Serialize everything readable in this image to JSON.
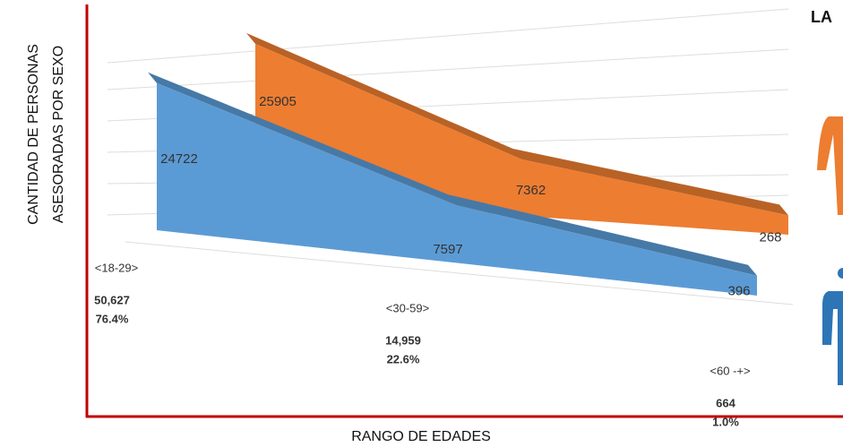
{
  "chart_data": {
    "type": "area3d",
    "title": "LA",
    "ylabel": [
      "CANTIDAD DE  PERSONAS",
      "ASESORADAS POR SEXO"
    ],
    "xlabel": "RANGO DE EDADES",
    "categories": [
      "<18-29>",
      "<30-59>",
      "<60 -+>"
    ],
    "ylim": [
      0,
      30000
    ],
    "grid": true,
    "series": [
      {
        "color": "#ed7d31",
        "values": [
          25905,
          7362,
          268
        ]
      },
      {
        "color": "#5b9bd5",
        "values": [
          24722,
          7597,
          396
        ]
      }
    ],
    "totals": {
      "values": [
        50627,
        14959,
        664
      ],
      "value_labels": [
        "50,627",
        "14,959",
        "664"
      ]
    },
    "percentages": {
      "values": [
        76.4,
        22.6,
        1.0
      ],
      "value_labels": [
        "76.4%",
        "22.6%",
        "1.0%"
      ]
    }
  }
}
